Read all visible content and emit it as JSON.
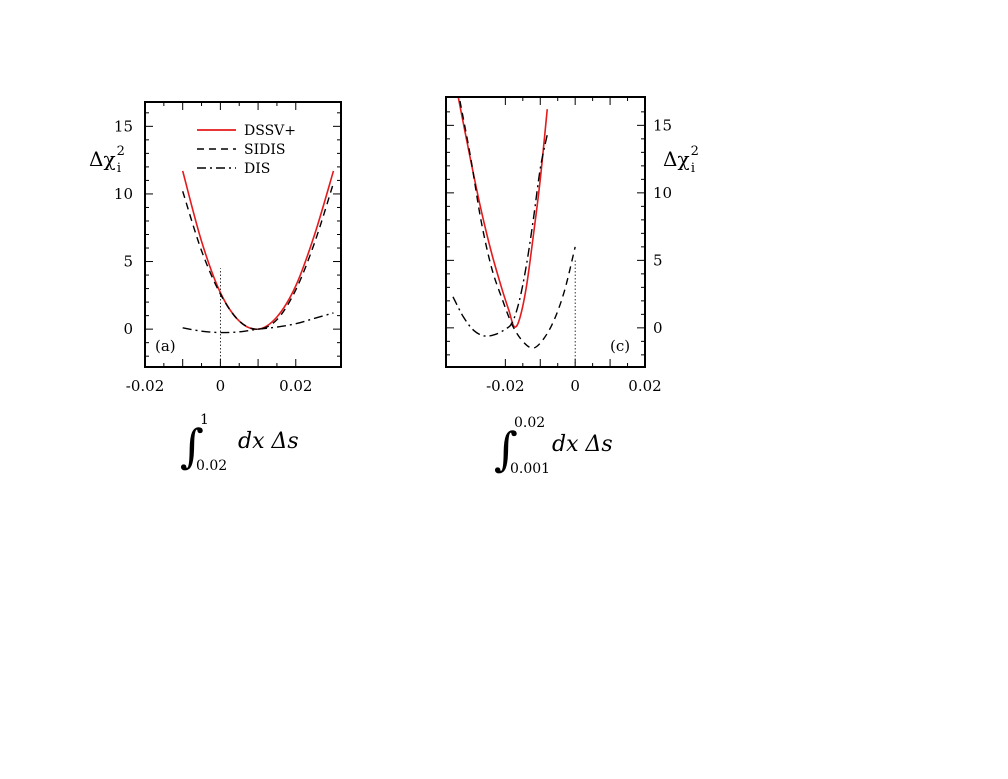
{
  "colors": {
    "dssv": "#e41a1c",
    "sidis": "#000000",
    "dis": "#000000",
    "frame": "#000000"
  },
  "legend": {
    "placement": "top-left",
    "entries": [
      "DSSV+",
      "SIDIS",
      "DIS"
    ]
  },
  "chart_data": [
    {
      "panel": "(a)",
      "type": "line",
      "ylabel": "Δχ",
      "ylabel_sup": "2",
      "ylabel_sub": "i",
      "ylabel_side": "left",
      "x_integral": {
        "lower": "0.02",
        "upper": "1",
        "integrand": "dx Δs"
      },
      "xlim": [
        -0.02,
        0.032
      ],
      "ylim": [
        -2.8,
        16.8
      ],
      "xticks": [
        "-0.02",
        "0",
        "0.02"
      ],
      "xtick_values": [
        -0.02,
        0,
        0.02
      ],
      "yticks": [
        "0",
        "5",
        "10",
        "15"
      ],
      "ytick_values": [
        0,
        5,
        10,
        15
      ],
      "vline_x": 0,
      "vline_ymax": 4.5,
      "series": [
        {
          "name": "DSSV+",
          "style": "solid",
          "color": "#e41a1c",
          "x": [
            -0.01,
            -0.005,
            0,
            0.005,
            0.01,
            0.015,
            0.02,
            0.025,
            0.03
          ],
          "y": [
            11.7,
            6.5,
            2.7,
            0.6,
            0.0,
            0.9,
            3.2,
            7.0,
            11.7
          ]
        },
        {
          "name": "SIDIS",
          "style": "dashed",
          "color": "#000000",
          "x": [
            -0.01,
            -0.005,
            0,
            0.005,
            0.01,
            0.015,
            0.02,
            0.025,
            0.03
          ],
          "y": [
            10.2,
            5.8,
            2.6,
            0.6,
            0.0,
            0.7,
            2.9,
            6.4,
            10.8
          ]
        },
        {
          "name": "DIS",
          "style": "dashdot",
          "color": "#000000",
          "x": [
            -0.01,
            -0.005,
            0,
            0.005,
            0.01,
            0.015,
            0.02,
            0.025,
            0.03
          ],
          "y": [
            0.1,
            -0.15,
            -0.25,
            -0.2,
            0.0,
            0.15,
            0.4,
            0.8,
            1.2
          ]
        }
      ]
    },
    {
      "panel": "(c)",
      "type": "line",
      "ylabel": "Δχ",
      "ylabel_sup": "2",
      "ylabel_sub": "i",
      "ylabel_side": "right",
      "x_integral": {
        "lower": "0.001",
        "upper": "0.02",
        "integrand": "dx Δs"
      },
      "xlim": [
        -0.037,
        0.02
      ],
      "ylim": [
        -2.9,
        17.1
      ],
      "xticks": [
        "-0.02",
        "0",
        "0.02"
      ],
      "xtick_values": [
        -0.02,
        0,
        0.02
      ],
      "yticks": [
        "0",
        "5",
        "10",
        "15"
      ],
      "ytick_values": [
        0,
        5,
        10,
        15
      ],
      "vline_x": 0,
      "vline_ymax": 5.0,
      "series": [
        {
          "name": "DSSV+",
          "style": "solid",
          "color": "#e41a1c",
          "x": [
            -0.0335,
            -0.03,
            -0.027,
            -0.024,
            -0.021,
            -0.019,
            -0.0175,
            -0.016,
            -0.014,
            -0.012,
            -0.01,
            -0.008
          ],
          "y": [
            17.1,
            12.5,
            8.8,
            5.6,
            2.9,
            1.3,
            0.1,
            0.6,
            3.0,
            6.8,
            11.0,
            16.2
          ]
        },
        {
          "name": "SIDIS",
          "style": "dashed",
          "color": "#000000",
          "x": [
            -0.033,
            -0.03,
            -0.027,
            -0.024,
            -0.021,
            -0.018,
            -0.015,
            -0.012,
            -0.009,
            -0.006,
            -0.003,
            0
          ],
          "y": [
            16.8,
            12.7,
            8.0,
            4.5,
            2.2,
            0.2,
            -1.0,
            -1.5,
            -0.8,
            0.6,
            2.8,
            6.0
          ]
        },
        {
          "name": "DIS",
          "style": "dashdot",
          "color": "#000000",
          "x": [
            -0.035,
            -0.032,
            -0.029,
            -0.026,
            -0.023,
            -0.02,
            -0.018,
            -0.016,
            -0.014,
            -0.012,
            -0.01,
            -0.008
          ],
          "y": [
            2.3,
            0.8,
            -0.2,
            -0.6,
            -0.5,
            -0.1,
            0.4,
            2.0,
            4.6,
            8.0,
            11.8,
            14.3
          ]
        }
      ]
    }
  ]
}
